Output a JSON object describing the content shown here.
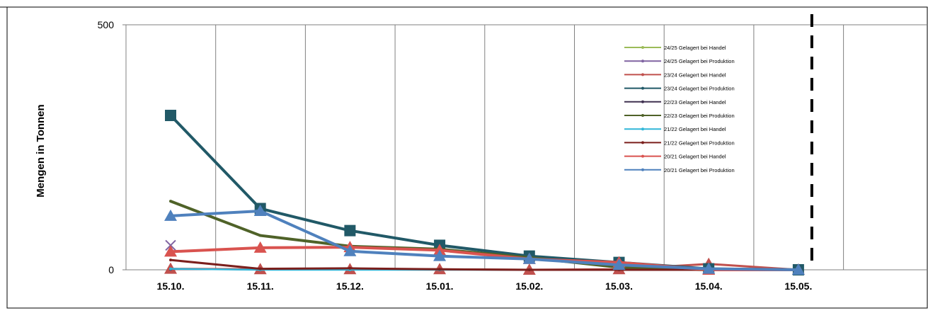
{
  "chart_data": {
    "type": "line",
    "ylabel": "Mengen in Tonnen",
    "xlabel": "",
    "categories": [
      "15.10.",
      "15.11.",
      "15.12.",
      "15.01.",
      "15.02.",
      "15.03.",
      "15.04.",
      "15.05."
    ],
    "ylim": [
      0,
      500
    ],
    "yticks": [
      0,
      500
    ],
    "grid": "vertical",
    "legend_position": "top-right",
    "marker_line_after_category": "15.05.",
    "series": [
      {
        "name": "24/25 Gelagert bei Handel",
        "color": "#9BBB59",
        "marker": "none",
        "width": 1.5,
        "values": [
          null,
          null,
          null,
          null,
          null,
          null,
          null,
          null
        ]
      },
      {
        "name": "24/25 Gelagert bei Produktion",
        "color": "#8064A2",
        "marker": "x",
        "width": 1.5,
        "values": [
          50,
          null,
          null,
          null,
          null,
          null,
          null,
          null
        ]
      },
      {
        "name": "23/24 Gelagert bei Handel",
        "color": "#C0504D",
        "marker": "triangle",
        "width": 3,
        "values": [
          2,
          1,
          1,
          1,
          0,
          1,
          12,
          0
        ]
      },
      {
        "name": "23/24 Gelagert bei Produktion",
        "color": "#215967",
        "marker": "square",
        "width": 4,
        "values": [
          315,
          125,
          80,
          50,
          28,
          15,
          2,
          0
        ]
      },
      {
        "name": "22/23 Gelagert bei Handel",
        "color": "#403151",
        "marker": "none",
        "width": 1.5,
        "values": [
          1,
          0,
          0,
          0,
          0,
          0,
          0,
          0
        ]
      },
      {
        "name": "22/23 Gelagert bei Produktion",
        "color": "#4F6228",
        "marker": "none",
        "width": 4,
        "values": [
          140,
          70,
          48,
          42,
          25,
          5,
          0,
          0
        ]
      },
      {
        "name": "21/22 Gelagert bei Handel",
        "color": "#31B6D8",
        "marker": "none",
        "width": 2.5,
        "values": [
          2,
          0,
          0,
          0,
          0,
          0,
          0,
          0
        ]
      },
      {
        "name": "21/22 Gelagert bei Produktion",
        "color": "#7B1F1C",
        "marker": "none",
        "width": 3,
        "values": [
          20,
          2,
          3,
          1,
          0,
          0,
          0,
          0
        ]
      },
      {
        "name": "20/21 Gelagert bei Handel",
        "color": "#D9534F",
        "marker": "triangle",
        "width": 4,
        "values": [
          37,
          45,
          46,
          40,
          22,
          15,
          0,
          0
        ]
      },
      {
        "name": "20/21 Gelagert bei Produktion",
        "color": "#4F81BD",
        "marker": "triangle",
        "width": 4,
        "values": [
          110,
          120,
          38,
          28,
          22,
          10,
          2,
          0
        ]
      }
    ]
  }
}
